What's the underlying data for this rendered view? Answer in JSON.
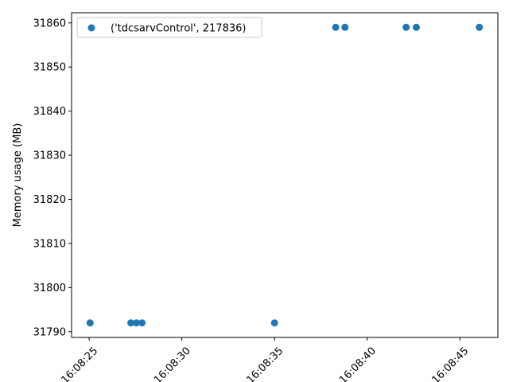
{
  "chart_data": {
    "type": "scatter",
    "title": "",
    "xlabel": "",
    "ylabel": "Memory usage (MB)",
    "x_axis_type": "time",
    "x_tick_labels": [
      "16:08:25",
      "16:08:30",
      "16:08:35",
      "16:08:40",
      "16:08:45"
    ],
    "y_ticks": [
      31790,
      31800,
      31810,
      31820,
      31830,
      31840,
      31850,
      31860
    ],
    "xlim": [
      "16:08:24.050",
      "16:08:47.050"
    ],
    "ylim": [
      31788.7,
      31862.3
    ],
    "grid": false,
    "legend_position": "upper-left",
    "series": [
      {
        "name": "('tdcsarvControl', 217836)",
        "color": "#1f77b4",
        "points": [
          {
            "x": "16:08:25.050",
            "y": 31792
          },
          {
            "x": "16:08:27.250",
            "y": 31792
          },
          {
            "x": "16:08:27.550",
            "y": 31792
          },
          {
            "x": "16:08:27.850",
            "y": 31792
          },
          {
            "x": "16:08:35.000",
            "y": 31792
          },
          {
            "x": "16:08:38.300",
            "y": 31859
          },
          {
            "x": "16:08:38.800",
            "y": 31859
          },
          {
            "x": "16:08:42.100",
            "y": 31859
          },
          {
            "x": "16:08:42.650",
            "y": 31859
          },
          {
            "x": "16:08:46.050",
            "y": 31859
          }
        ]
      }
    ]
  }
}
